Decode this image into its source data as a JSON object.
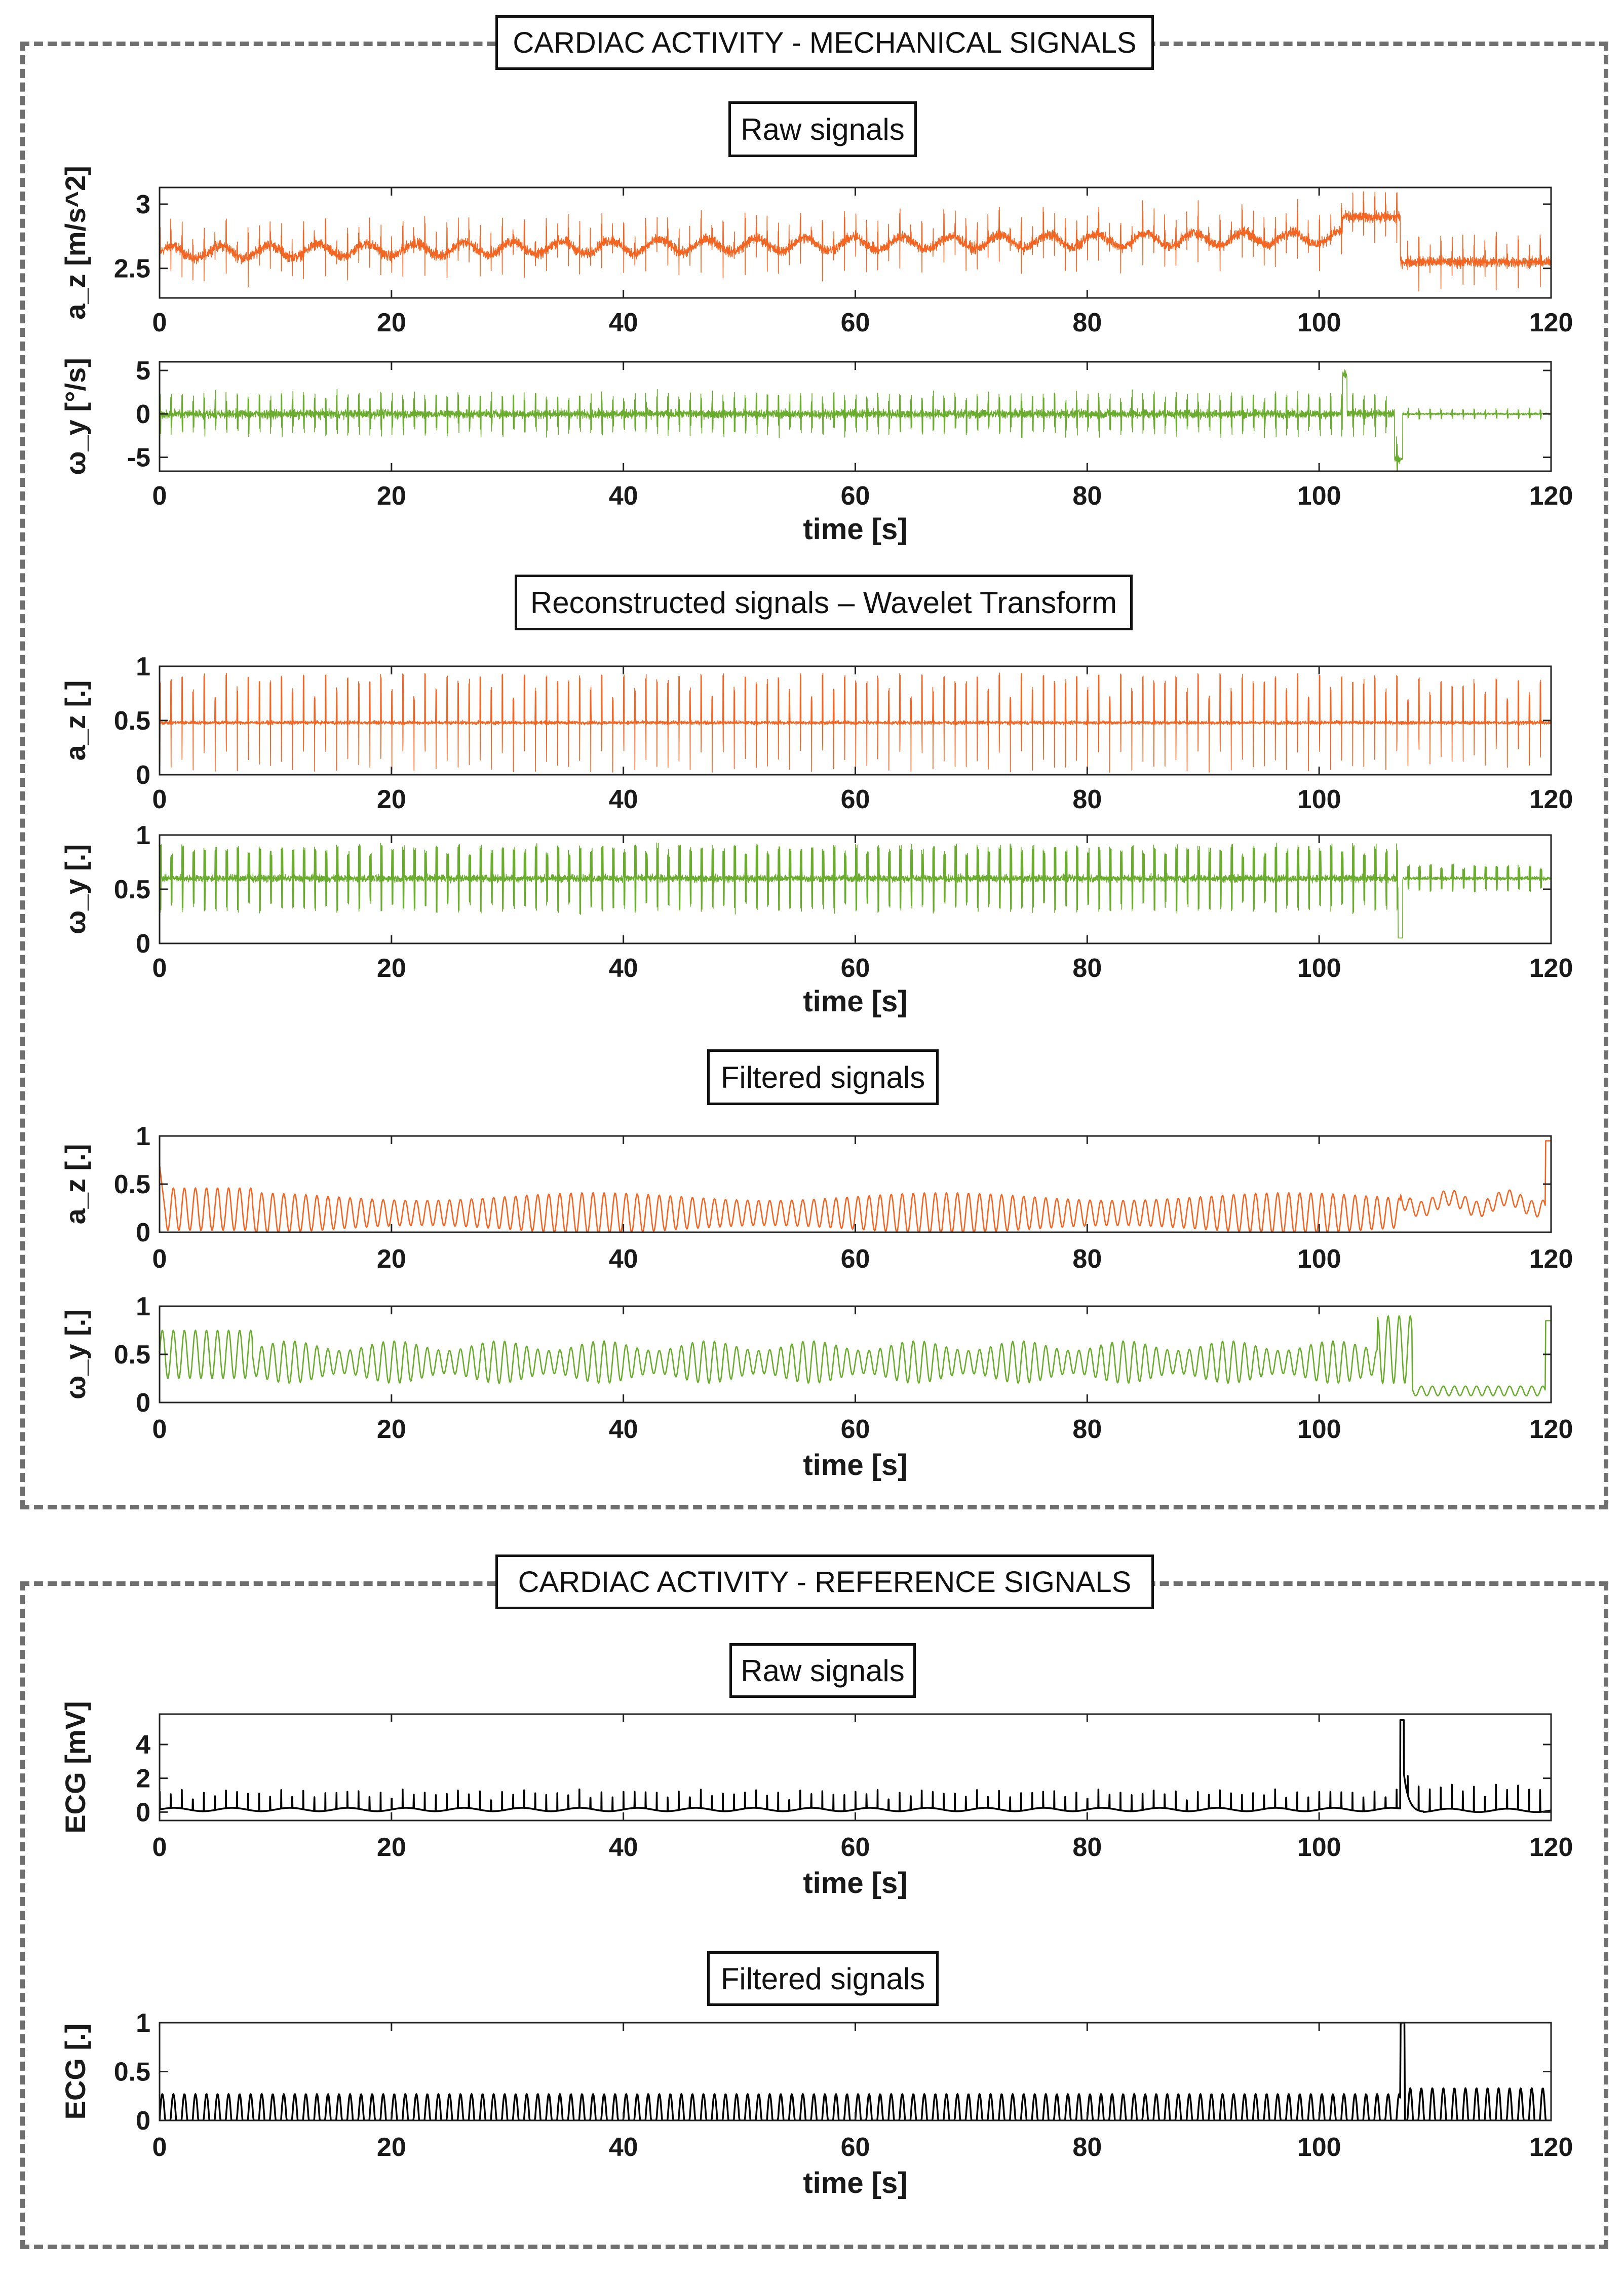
{
  "sections": [
    {
      "title": "CARDIAC ACTIVITY - MECHANICAL SIGNALS"
    },
    {
      "title": "CARDIAC ACTIVITY - REFERENCE SIGNALS"
    }
  ],
  "subtitles": {
    "mech_raw": "Raw signals",
    "mech_wavelet": "Reconstructed signals – Wavelet Transform",
    "mech_filtered": "Filtered signals",
    "ref_raw": "Raw signals",
    "ref_filtered": "Filtered signals"
  },
  "colors": {
    "orange": "#f26522",
    "green": "#6aac2d",
    "black": "#000000"
  },
  "chart_data": [
    {
      "id": "raw_az",
      "type": "line",
      "group": "mech_raw",
      "series_name": "a_z raw",
      "ylabel": "a_z [m/s^2]",
      "xlabel": "",
      "xlim": [
        0,
        120
      ],
      "ylim": [
        2.27,
        3.13
      ],
      "yticks": [
        2.5,
        3
      ],
      "ytick_labels": [
        "2.5",
        "3"
      ],
      "xticks": [
        0,
        20,
        40,
        60,
        80,
        100,
        120
      ],
      "xtick_labels": [
        "0",
        "20",
        "40",
        "60",
        "80",
        "100",
        "120"
      ],
      "color": "orange",
      "signal": {
        "kind": "raw_acc",
        "beats_per_sec": 1.05,
        "stroke": 1.6
      }
    },
    {
      "id": "raw_wy",
      "type": "line",
      "group": "mech_raw",
      "series_name": "ω_y raw",
      "ylabel": "ω_y [°/s]",
      "xlabel": "time [s]",
      "xlim": [
        0,
        120
      ],
      "ylim": [
        -6.6,
        6
      ],
      "yticks": [
        -5,
        0,
        5
      ],
      "ytick_labels": [
        "-5",
        "0",
        "5"
      ],
      "xticks": [
        0,
        20,
        40,
        60,
        80,
        100,
        120
      ],
      "xtick_labels": [
        "0",
        "20",
        "40",
        "60",
        "80",
        "100",
        "120"
      ],
      "color": "green",
      "signal": {
        "kind": "raw_gyro",
        "beats_per_sec": 1.05,
        "stroke": 1.6
      }
    },
    {
      "id": "wt_az",
      "type": "line",
      "group": "mech_wavelet",
      "series_name": "a_z wavelet",
      "ylabel": "a_z [.]",
      "xlabel": "",
      "xlim": [
        0,
        120
      ],
      "ylim": [
        0,
        1
      ],
      "yticks": [
        0,
        0.5,
        1
      ],
      "ytick_labels": [
        "0",
        "0.5",
        "1"
      ],
      "xticks": [
        0,
        20,
        40,
        60,
        80,
        100,
        120
      ],
      "xtick_labels": [
        "0",
        "20",
        "40",
        "60",
        "80",
        "100",
        "120"
      ],
      "color": "orange",
      "signal": {
        "kind": "wavelet_acc",
        "beats_per_sec": 1.05,
        "stroke": 1.6
      }
    },
    {
      "id": "wt_wy",
      "type": "line",
      "group": "mech_wavelet",
      "series_name": "ω_y wavelet",
      "ylabel": "ω_y [.]",
      "xlabel": "time [s]",
      "xlim": [
        0,
        120
      ],
      "ylim": [
        0,
        1
      ],
      "yticks": [
        0,
        0.5,
        1
      ],
      "ytick_labels": [
        "0",
        "0.5",
        "1"
      ],
      "xticks": [
        0,
        20,
        40,
        60,
        80,
        100,
        120
      ],
      "xtick_labels": [
        "0",
        "20",
        "40",
        "60",
        "80",
        "100",
        "120"
      ],
      "color": "green",
      "signal": {
        "kind": "wavelet_gyro",
        "beats_per_sec": 1.05,
        "stroke": 1.6
      }
    },
    {
      "id": "filt_az",
      "type": "line",
      "group": "mech_filtered",
      "series_name": "a_z filtered",
      "ylabel": "a_z [.]",
      "xlabel": "",
      "xlim": [
        0,
        120
      ],
      "ylim": [
        0,
        1
      ],
      "yticks": [
        0,
        0.5,
        1
      ],
      "ytick_labels": [
        "0",
        "0.5",
        "1"
      ],
      "xticks": [
        0,
        20,
        40,
        60,
        80,
        100,
        120
      ],
      "xtick_labels": [
        "0",
        "20",
        "40",
        "60",
        "80",
        "100",
        "120"
      ],
      "color": "orange",
      "signal": {
        "kind": "filtered_acc",
        "beats_per_sec": 1.05,
        "stroke": 2.6
      }
    },
    {
      "id": "filt_wy",
      "type": "line",
      "group": "mech_filtered",
      "series_name": "ω_y filtered",
      "ylabel": "ω_y [.]",
      "xlabel": "time [s]",
      "xlim": [
        0,
        120
      ],
      "ylim": [
        0,
        1
      ],
      "yticks": [
        0,
        0.5,
        1
      ],
      "ytick_labels": [
        "0",
        "0.5",
        "1"
      ],
      "xticks": [
        0,
        20,
        40,
        60,
        80,
        100,
        120
      ],
      "xtick_labels": [
        "0",
        "20",
        "40",
        "60",
        "80",
        "100",
        "120"
      ],
      "color": "green",
      "signal": {
        "kind": "filtered_gyro",
        "beats_per_sec": 1.05,
        "stroke": 2.6
      }
    },
    {
      "id": "ecg_raw",
      "type": "line",
      "group": "ref_raw",
      "series_name": "ECG raw",
      "ylabel": "ECG [mV]",
      "xlabel": "time [s]",
      "xlim": [
        0,
        120
      ],
      "ylim": [
        -0.5,
        5.8
      ],
      "yticks": [
        0,
        2,
        4
      ],
      "ytick_labels": [
        "0",
        "2",
        "4"
      ],
      "xticks": [
        0,
        20,
        40,
        60,
        80,
        100,
        120
      ],
      "xtick_labels": [
        "0",
        "20",
        "40",
        "60",
        "80",
        "100",
        "120"
      ],
      "color": "black",
      "signal": {
        "kind": "ecg_raw",
        "beats_per_sec": 1.05,
        "stroke": 3.5
      }
    },
    {
      "id": "ecg_filt",
      "type": "line",
      "group": "ref_filtered",
      "series_name": "ECG filtered",
      "ylabel": "ECG [.]",
      "xlabel": "time [s]",
      "xlim": [
        0,
        120
      ],
      "ylim": [
        0,
        1
      ],
      "yticks": [
        0,
        0.5,
        1
      ],
      "ytick_labels": [
        "0",
        "0.5",
        "1"
      ],
      "xticks": [
        0,
        20,
        40,
        60,
        80,
        100,
        120
      ],
      "xtick_labels": [
        "0",
        "20",
        "40",
        "60",
        "80",
        "100",
        "120"
      ],
      "color": "black",
      "signal": {
        "kind": "ecg_filtered",
        "beats_per_sec": 1.05,
        "stroke": 3.5
      }
    }
  ]
}
